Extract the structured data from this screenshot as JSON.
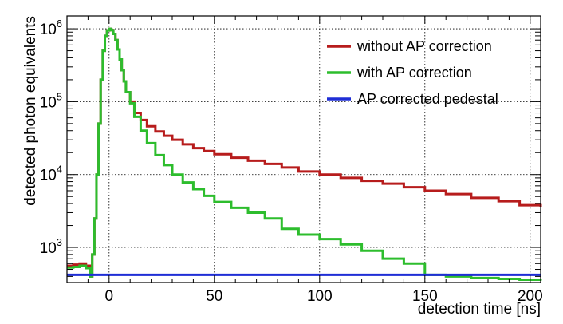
{
  "chart_data": {
    "type": "line",
    "style": "step",
    "title": "",
    "xlabel": "detection time [ns]",
    "ylabel": "detected photon equivalents",
    "xlim": [
      -20,
      205
    ],
    "ylim": [
      330,
      1500000
    ],
    "yscale": "log",
    "grid": true,
    "x_ticks": [
      0,
      50,
      100,
      150,
      200
    ],
    "x_tick_labels": [
      "0",
      "50",
      "100",
      "150",
      "200"
    ],
    "y_ticks": [
      1000,
      10000,
      100000,
      1000000
    ],
    "y_tick_labels": [
      {
        "base": "10",
        "exp": "3"
      },
      {
        "base": "10",
        "exp": "4"
      },
      {
        "base": "10",
        "exp": "5"
      },
      {
        "base": "10",
        "exp": "6"
      }
    ],
    "legend_position": "top-right",
    "series": [
      {
        "name": "without AP correction",
        "color": "#b71c1c",
        "x": [
          -20,
          -17,
          -14,
          -11,
          -9,
          -8,
          -7,
          -6,
          -5,
          -4,
          -3,
          -2,
          -1,
          0,
          1,
          2,
          3,
          4,
          5,
          6,
          7,
          8,
          10,
          12,
          15,
          18,
          22,
          26,
          30,
          35,
          40,
          45,
          50,
          58,
          66,
          74,
          82,
          90,
          100,
          110,
          120,
          130,
          140,
          150,
          160,
          172,
          185,
          195,
          205
        ],
        "values": [
          560,
          580,
          600,
          560,
          400,
          800,
          2500,
          10000,
          50000,
          200000,
          500000,
          800000,
          950000,
          1000000,
          960000,
          850000,
          700000,
          520000,
          380000,
          270000,
          190000,
          135000,
          100000,
          70000,
          56000,
          46000,
          39000,
          34000,
          30000,
          26000,
          23000,
          21000,
          19000,
          17000,
          15500,
          14000,
          12500,
          11000,
          10000,
          9000,
          8200,
          7500,
          6700,
          6000,
          5400,
          4800,
          4300,
          3800,
          3600
        ]
      },
      {
        "name": "with AP correction",
        "color": "#2dbd2d",
        "x": [
          -20,
          -17,
          -14,
          -11,
          -9,
          -8,
          -7,
          -6,
          -5,
          -4,
          -3,
          -2,
          -1,
          0,
          1,
          2,
          3,
          4,
          5,
          6,
          7,
          8,
          10,
          12,
          15,
          18,
          22,
          26,
          30,
          35,
          40,
          45,
          50,
          58,
          66,
          74,
          82,
          90,
          100,
          110,
          120,
          130,
          140,
          150,
          160,
          172,
          185,
          195,
          205
        ],
        "values": [
          530,
          540,
          560,
          520,
          400,
          800,
          2500,
          10000,
          50000,
          200000,
          500000,
          800000,
          950000,
          1000000,
          960000,
          850000,
          700000,
          520000,
          380000,
          270000,
          190000,
          135000,
          95000,
          62000,
          40000,
          27000,
          18500,
          13500,
          10000,
          7800,
          6300,
          5100,
          4200,
          3500,
          3000,
          2500,
          1800,
          1500,
          1300,
          1100,
          900,
          700,
          600,
          420,
          400,
          380,
          370,
          360,
          350
        ]
      },
      {
        "name": "AP corrected pedestal",
        "color": "#1f2ed6",
        "x": [
          -20,
          205
        ],
        "values": [
          420,
          420
        ]
      }
    ]
  }
}
